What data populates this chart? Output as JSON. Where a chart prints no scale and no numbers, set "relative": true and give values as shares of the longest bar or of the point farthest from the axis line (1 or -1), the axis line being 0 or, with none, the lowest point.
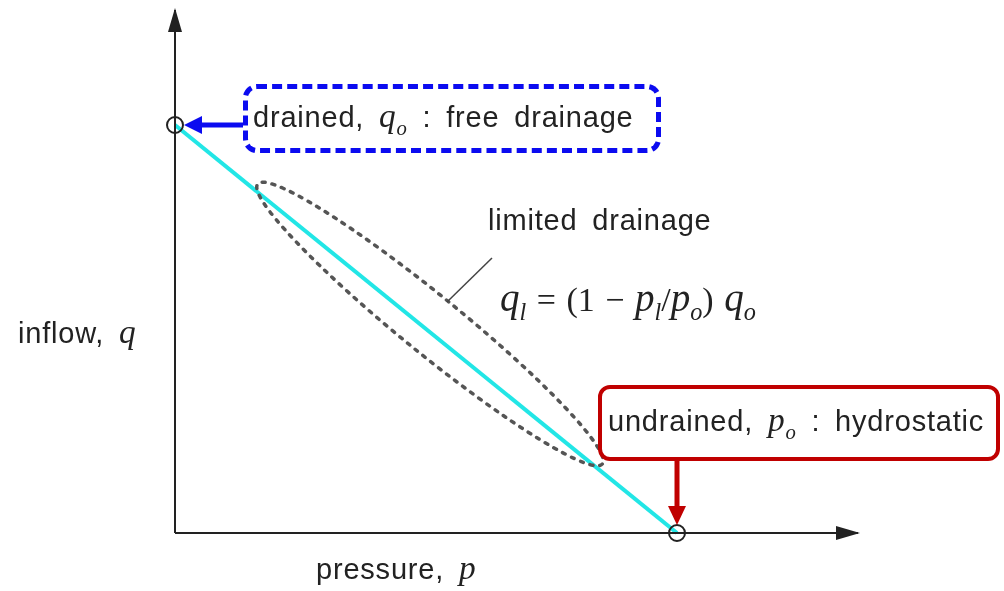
{
  "chart_data": {
    "type": "line",
    "xlabel": "pressure, p",
    "ylabel": "inflow, q",
    "categories": [
      null,
      null
    ],
    "values": [
      1,
      0
    ],
    "color": "#22e6e6",
    "relative": true,
    "marker": "circle",
    "annotations": [
      "drained, q$_{o}$ : free drainage",
      "limited drainage",
      "q$_{l}$ = (1 − p$_{l}$/p$_{o}$) q$_{o}$",
      "undrained, p$_{o}$ : hydrostatic"
    ]
  }
}
